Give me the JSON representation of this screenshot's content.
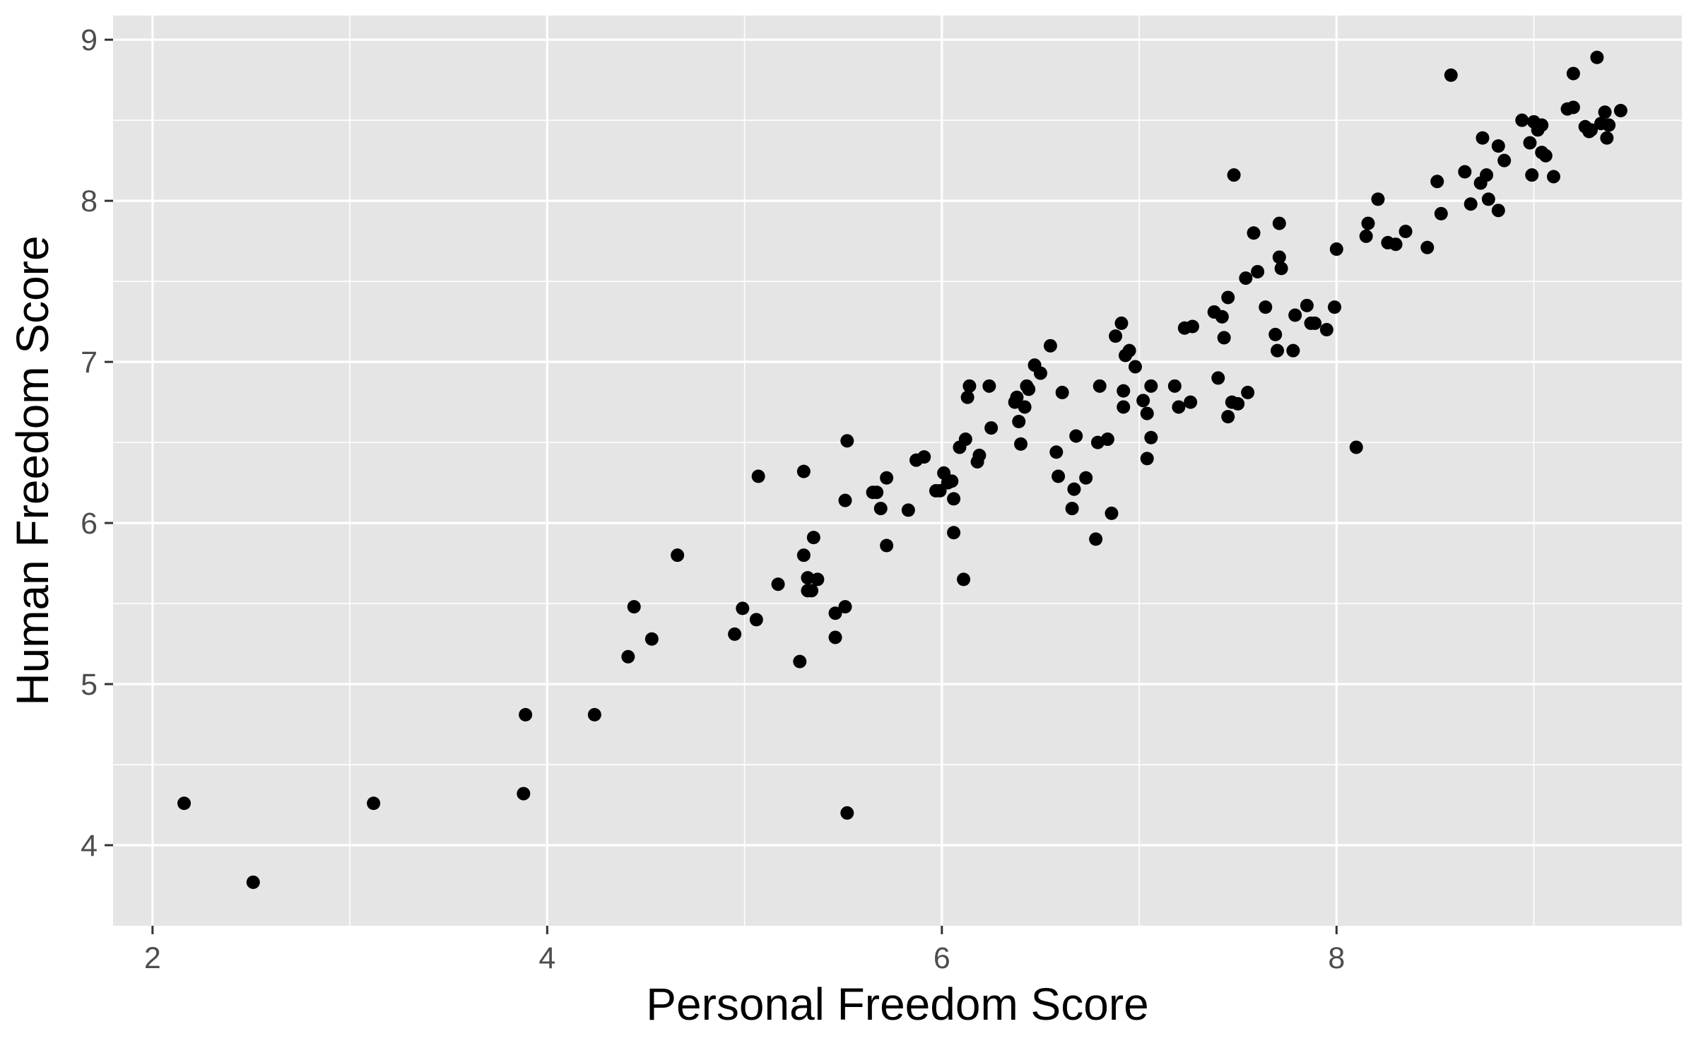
{
  "chart_data": {
    "type": "scatter",
    "xlabel": "Personal Freedom Score",
    "ylabel": "Human Freedom Score",
    "xlim": [
      1.8,
      9.75
    ],
    "ylim": [
      3.5,
      9.15
    ],
    "x_ticks": [
      2,
      4,
      6,
      8
    ],
    "x_tick_labels": [
      "2",
      "4",
      "6",
      "8"
    ],
    "y_ticks": [
      4,
      5,
      6,
      7,
      8,
      9
    ],
    "y_tick_labels": [
      "4",
      "5",
      "6",
      "7",
      "8",
      "9"
    ],
    "grid": true,
    "colors": {
      "panel": "#e5e5e5",
      "grid": "#ffffff",
      "point": "#000000"
    },
    "points": [
      [
        2.16,
        4.26
      ],
      [
        2.51,
        3.77
      ],
      [
        3.12,
        4.26
      ],
      [
        3.88,
        4.32
      ],
      [
        3.89,
        4.81
      ],
      [
        4.24,
        4.81
      ],
      [
        4.41,
        5.17
      ],
      [
        4.44,
        5.48
      ],
      [
        4.53,
        5.28
      ],
      [
        4.66,
        5.8
      ],
      [
        4.95,
        5.31
      ],
      [
        4.99,
        5.47
      ],
      [
        5.06,
        5.4
      ],
      [
        5.07,
        6.29
      ],
      [
        5.17,
        5.62
      ],
      [
        5.28,
        5.14
      ],
      [
        5.3,
        5.8
      ],
      [
        5.3,
        6.32
      ],
      [
        5.32,
        5.66
      ],
      [
        5.32,
        5.58
      ],
      [
        5.34,
        5.58
      ],
      [
        5.35,
        5.91
      ],
      [
        5.37,
        5.65
      ],
      [
        5.46,
        5.44
      ],
      [
        5.46,
        5.29
      ],
      [
        5.51,
        5.48
      ],
      [
        5.51,
        6.14
      ],
      [
        5.52,
        6.51
      ],
      [
        5.52,
        4.2
      ],
      [
        5.65,
        6.19
      ],
      [
        5.67,
        6.19
      ],
      [
        5.69,
        6.09
      ],
      [
        5.72,
        6.28
      ],
      [
        5.72,
        5.86
      ],
      [
        5.83,
        6.08
      ],
      [
        5.87,
        6.39
      ],
      [
        5.91,
        6.41
      ],
      [
        5.97,
        6.2
      ],
      [
        5.99,
        6.2
      ],
      [
        6.01,
        6.31
      ],
      [
        6.03,
        6.25
      ],
      [
        6.05,
        6.26
      ],
      [
        6.06,
        5.94
      ],
      [
        6.06,
        6.15
      ],
      [
        6.09,
        6.47
      ],
      [
        6.11,
        5.65
      ],
      [
        6.12,
        6.52
      ],
      [
        6.13,
        6.78
      ],
      [
        6.14,
        6.85
      ],
      [
        6.18,
        6.38
      ],
      [
        6.19,
        6.42
      ],
      [
        6.24,
        6.85
      ],
      [
        6.25,
        6.59
      ],
      [
        6.37,
        6.75
      ],
      [
        6.38,
        6.78
      ],
      [
        6.39,
        6.63
      ],
      [
        6.4,
        6.49
      ],
      [
        6.42,
        6.72
      ],
      [
        6.43,
        6.85
      ],
      [
        6.44,
        6.83
      ],
      [
        6.47,
        6.98
      ],
      [
        6.5,
        6.93
      ],
      [
        6.55,
        7.1
      ],
      [
        6.58,
        6.44
      ],
      [
        6.59,
        6.29
      ],
      [
        6.61,
        6.81
      ],
      [
        6.66,
        6.09
      ],
      [
        6.67,
        6.21
      ],
      [
        6.68,
        6.54
      ],
      [
        6.73,
        6.28
      ],
      [
        6.78,
        5.9
      ],
      [
        6.79,
        6.5
      ],
      [
        6.8,
        6.85
      ],
      [
        6.84,
        6.52
      ],
      [
        6.86,
        6.06
      ],
      [
        6.88,
        7.16
      ],
      [
        6.91,
        7.24
      ],
      [
        6.92,
        6.72
      ],
      [
        6.92,
        6.82
      ],
      [
        6.93,
        7.04
      ],
      [
        6.95,
        7.07
      ],
      [
        6.98,
        6.97
      ],
      [
        7.02,
        6.76
      ],
      [
        7.04,
        6.68
      ],
      [
        7.04,
        6.4
      ],
      [
        7.06,
        6.53
      ],
      [
        7.06,
        6.85
      ],
      [
        7.18,
        6.85
      ],
      [
        7.2,
        6.72
      ],
      [
        7.23,
        7.21
      ],
      [
        7.26,
        6.75
      ],
      [
        7.27,
        7.22
      ],
      [
        7.38,
        7.31
      ],
      [
        7.4,
        6.9
      ],
      [
        7.42,
        7.28
      ],
      [
        7.43,
        7.15
      ],
      [
        7.45,
        6.66
      ],
      [
        7.45,
        7.4
      ],
      [
        7.47,
        6.75
      ],
      [
        7.48,
        8.16
      ],
      [
        7.5,
        6.74
      ],
      [
        7.54,
        7.52
      ],
      [
        7.55,
        6.81
      ],
      [
        7.58,
        7.8
      ],
      [
        7.6,
        7.56
      ],
      [
        7.64,
        7.34
      ],
      [
        7.69,
        7.17
      ],
      [
        7.7,
        7.07
      ],
      [
        7.71,
        7.65
      ],
      [
        7.71,
        7.86
      ],
      [
        7.72,
        7.58
      ],
      [
        7.78,
        7.07
      ],
      [
        7.79,
        7.29
      ],
      [
        7.85,
        7.35
      ],
      [
        7.87,
        7.24
      ],
      [
        7.89,
        7.24
      ],
      [
        7.95,
        7.2
      ],
      [
        7.99,
        7.34
      ],
      [
        8.0,
        7.7
      ],
      [
        8.1,
        6.47
      ],
      [
        8.15,
        7.78
      ],
      [
        8.16,
        7.86
      ],
      [
        8.21,
        8.01
      ],
      [
        8.26,
        7.74
      ],
      [
        8.3,
        7.73
      ],
      [
        8.35,
        7.81
      ],
      [
        8.46,
        7.71
      ],
      [
        8.51,
        8.12
      ],
      [
        8.53,
        7.92
      ],
      [
        8.58,
        8.78
      ],
      [
        8.65,
        8.18
      ],
      [
        8.68,
        7.98
      ],
      [
        8.73,
        8.11
      ],
      [
        8.74,
        8.39
      ],
      [
        8.76,
        8.16
      ],
      [
        8.77,
        8.01
      ],
      [
        8.82,
        7.94
      ],
      [
        8.82,
        8.34
      ],
      [
        8.85,
        8.25
      ],
      [
        8.94,
        8.5
      ],
      [
        8.98,
        8.36
      ],
      [
        8.99,
        8.16
      ],
      [
        9.0,
        8.49
      ],
      [
        9.02,
        8.44
      ],
      [
        9.04,
        8.47
      ],
      [
        9.04,
        8.3
      ],
      [
        9.06,
        8.28
      ],
      [
        9.1,
        8.15
      ],
      [
        9.17,
        8.57
      ],
      [
        9.2,
        8.58
      ],
      [
        9.2,
        8.79
      ],
      [
        9.26,
        8.46
      ],
      [
        9.28,
        8.43
      ],
      [
        9.29,
        8.44
      ],
      [
        9.32,
        8.89
      ],
      [
        9.34,
        8.48
      ],
      [
        9.36,
        8.55
      ],
      [
        9.37,
        8.39
      ],
      [
        9.38,
        8.47
      ],
      [
        9.44,
        8.56
      ]
    ]
  }
}
